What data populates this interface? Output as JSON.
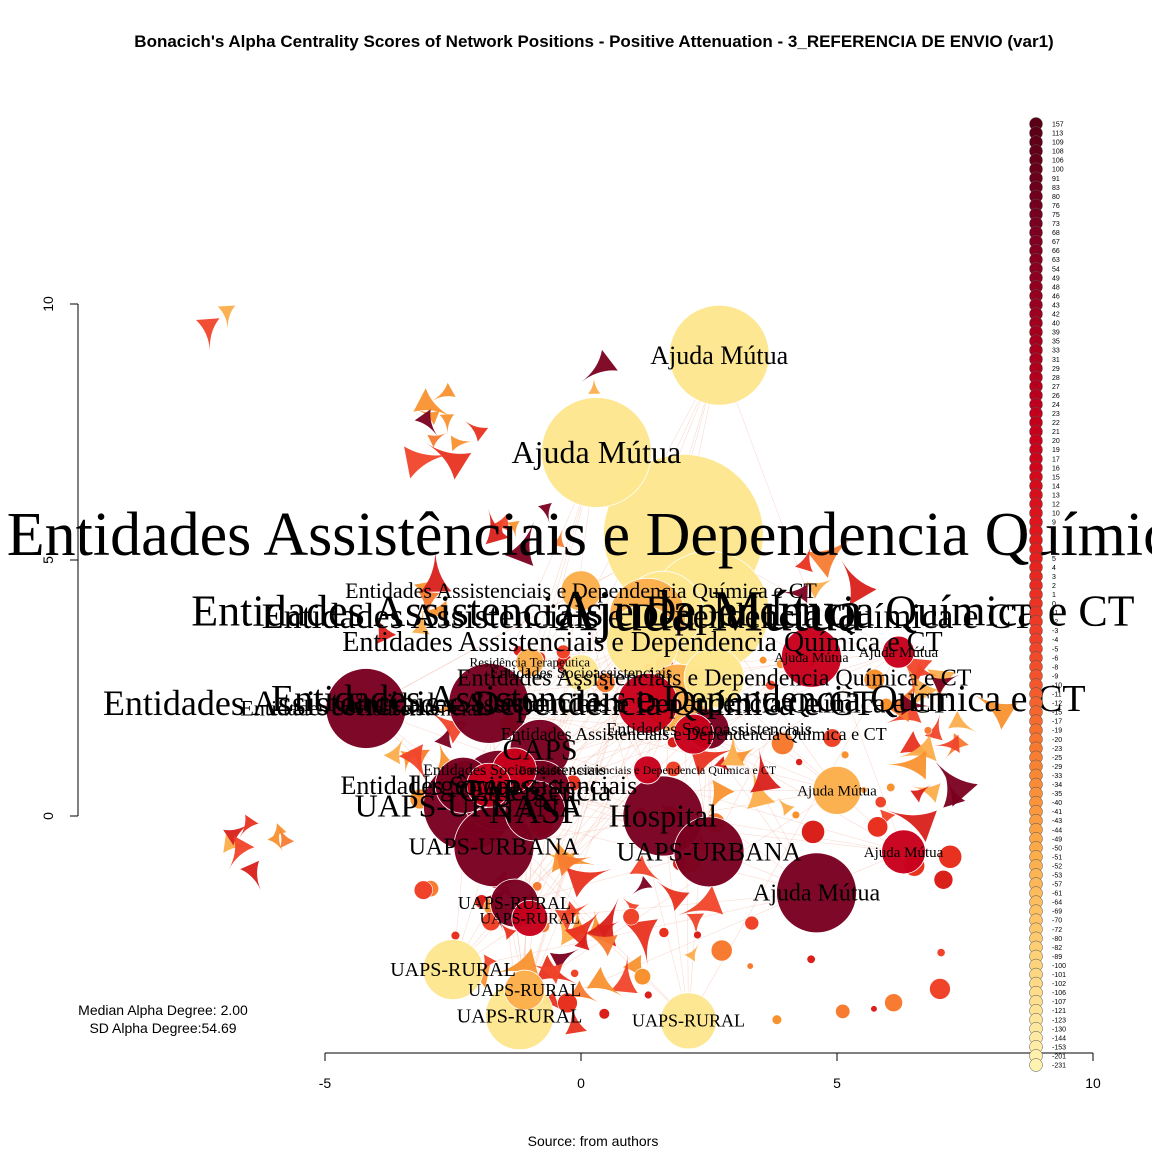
{
  "title": "Bonacich's Alpha Centrality Scores of Network Positions - Positive Attenuation - 3_REFERENCIA DE ENVIO (var1)",
  "source": "Source: from authors",
  "stats": {
    "median": "Median Alpha Degree: 2.00",
    "sd": "SD Alpha Degree:54.69"
  },
  "x_axis": {
    "ticks": [
      "-5",
      "0",
      "5",
      "10"
    ]
  },
  "y_axis": {
    "ticks": [
      "0",
      "5",
      "10"
    ]
  },
  "legend": {
    "values": [
      "157",
      "113",
      "109",
      "108",
      "106",
      "100",
      "91",
      "83",
      "80",
      "76",
      "75",
      "73",
      "68",
      "67",
      "66",
      "63",
      "54",
      "49",
      "48",
      "46",
      "43",
      "42",
      "40",
      "39",
      "35",
      "33",
      "31",
      "29",
      "28",
      "27",
      "26",
      "24",
      "23",
      "22",
      "21",
      "20",
      "19",
      "17",
      "16",
      "15",
      "14",
      "13",
      "12",
      "10",
      "9",
      "8",
      "7",
      "6",
      "5",
      "4",
      "3",
      "2",
      "1",
      "0",
      "-1",
      "-2",
      "-3",
      "-4",
      "-5",
      "-6",
      "-8",
      "-9",
      "-10",
      "-11",
      "-12",
      "-15",
      "-17",
      "-19",
      "-20",
      "-23",
      "-25",
      "-29",
      "-33",
      "-34",
      "-35",
      "-40",
      "-41",
      "-43",
      "-44",
      "-49",
      "-50",
      "-51",
      "-52",
      "-53",
      "-57",
      "-61",
      "-64",
      "-69",
      "-70",
      "-72",
      "-80",
      "-82",
      "-89",
      "-100",
      "-101",
      "-102",
      "-106",
      "-107",
      "-121",
      "-123",
      "-130",
      "-144",
      "-153",
      "-201",
      "-231"
    ]
  },
  "colors": {
    "dark": "#7a0020",
    "red": "#c8001c",
    "orange_red": "#f0442a",
    "orange": "#f77b30",
    "light_orange": "#fcae4b",
    "pale": "#fde68e"
  },
  "chart_data": {
    "type": "network",
    "xlim": [
      -5,
      10
    ],
    "ylim": [
      0,
      10
    ],
    "nodes": [
      {
        "label": "Ajuda Mútua",
        "x": 2.7,
        "y": 9.0,
        "size": 50,
        "color": "#fde68e",
        "font": 26
      },
      {
        "label": "Ajuda Mútua",
        "x": 0.3,
        "y": 7.1,
        "size": 55,
        "color": "#fde68e",
        "font": 32
      },
      {
        "label": "Entidades Assistênciais e Dependencia Químicas e CT",
        "x": 2.0,
        "y": 5.5,
        "size": 80,
        "color": "#fde68e",
        "font": 62
      },
      {
        "label": "Ajuda Mútua",
        "x": 2.5,
        "y": 4.0,
        "size": 60,
        "color": "#fde68e",
        "font": 58
      },
      {
        "label": "Entidades Assistenciais e Dependencia Química e CT",
        "x": 1.6,
        "y": 4.0,
        "size": 40,
        "color": "#fde68e",
        "font": 44
      },
      {
        "label": "Entidades Assistenciais e Dependencia Química e CT",
        "x": 1.3,
        "y": 3.9,
        "size": 38,
        "color": "#fcae4b",
        "font": 36
      },
      {
        "label": "Entidades Assistenciais e Dependencia Química e CT",
        "x": 1.2,
        "y": 3.4,
        "size": 36,
        "color": "#fde68e",
        "font": 28
      },
      {
        "label": "Entidades Assistenciais e Dependencia Química e CT",
        "x": 0.0,
        "y": 4.4,
        "size": 20,
        "color": "#fcae4b",
        "font": 22
      },
      {
        "label": "Entidades Assistenciais e Dependencia Química e CT",
        "x": 2.6,
        "y": 2.7,
        "size": 30,
        "color": "#fde68e",
        "font": 24
      },
      {
        "label": "Entidades Assistenciais e Dependencia Química e CT",
        "x": 1.9,
        "y": 2.3,
        "size": 34,
        "color": "#fcae4b",
        "font": 38
      },
      {
        "label": "Entidades Assistenciais e Dependencia Química e CT",
        "x": 1.3,
        "y": 2.2,
        "size": 30,
        "color": "#c8001c",
        "font": 28
      },
      {
        "label": "Entidades Assistenciais e Dependencia Química e CT",
        "x": -1.8,
        "y": 2.2,
        "size": 40,
        "color": "#7a0020",
        "font": 36
      },
      {
        "label": "Entidades Socioassistenciais",
        "x": -4.2,
        "y": 2.1,
        "size": 40,
        "color": "#7a0020",
        "font": 22
      },
      {
        "label": "Entidades Socioassistenciais",
        "x": 0.0,
        "y": 2.8,
        "size": 18,
        "color": "#fde68e",
        "font": 16
      },
      {
        "label": "Entidades Socioassistenciais",
        "x": -1.3,
        "y": 0.9,
        "size": 22,
        "color": "#c8001c",
        "font": 16
      },
      {
        "label": "Entidades Socioassistenciais",
        "x": -1.8,
        "y": 0.6,
        "size": 22,
        "color": "#c8001c",
        "font": 26
      },
      {
        "label": "Residência Terapeutica",
        "x": -1.0,
        "y": 3.0,
        "size": 14,
        "color": "#fcae4b",
        "font": 13
      },
      {
        "label": "Entidades Socioassistenciais",
        "x": 2.5,
        "y": 1.7,
        "size": 20,
        "color": "#7a0020",
        "font": 18
      },
      {
        "label": "Entidades Assistenciais e Dependencia Química e CT",
        "x": 2.2,
        "y": 1.6,
        "size": 20,
        "color": "#c8001c",
        "font": 18
      },
      {
        "label": "Entidades Assistenciais e Dependencia Química e CT",
        "x": 1.3,
        "y": 0.9,
        "size": 14,
        "color": "#c8001c",
        "font": 12
      },
      {
        "label": "CAPS",
        "x": -0.8,
        "y": 1.3,
        "size": 30,
        "color": "#7a0020",
        "font": 30
      },
      {
        "label": "CAPS",
        "x": -1.6,
        "y": 0.5,
        "size": 40,
        "color": "#7a0020",
        "font": 32
      },
      {
        "label": "Urgência",
        "x": -2.3,
        "y": 0.6,
        "size": 28,
        "color": "#7a0020",
        "font": 30
      },
      {
        "label": "Emergência",
        "x": -0.8,
        "y": 0.5,
        "size": 30,
        "color": "#7a0020",
        "font": 30
      },
      {
        "label": "UAPS-URBANA",
        "x": -2.2,
        "y": 0.2,
        "size": 45,
        "color": "#7a0020",
        "font": 32
      },
      {
        "label": "NASF",
        "x": -0.9,
        "y": 0.1,
        "size": 30,
        "color": "#7a0020",
        "font": 36
      },
      {
        "label": "UAPS-URBANA",
        "x": -1.7,
        "y": -0.6,
        "size": 40,
        "color": "#7a0020",
        "font": 24
      },
      {
        "label": "Hospital",
        "x": 1.6,
        "y": 0.0,
        "size": 40,
        "color": "#7a0020",
        "font": 32
      },
      {
        "label": "UAPS-URBANA",
        "x": 2.5,
        "y": -0.7,
        "size": 35,
        "color": "#7a0020",
        "font": 26
      },
      {
        "label": "Ajuda Mútua",
        "x": 4.6,
        "y": -1.5,
        "size": 40,
        "color": "#7a0020",
        "font": 24
      },
      {
        "label": "Ajuda Mútua",
        "x": 6.3,
        "y": -0.7,
        "size": 22,
        "color": "#c8001c",
        "font": 15
      },
      {
        "label": "Ajuda Mútua",
        "x": 5.0,
        "y": 0.5,
        "size": 24,
        "color": "#fcae4b",
        "font": 15
      },
      {
        "label": "Ajuda Mútua",
        "x": 6.2,
        "y": 3.2,
        "size": 16,
        "color": "#c8001c",
        "font": 15
      },
      {
        "label": "Ajuda Mútua",
        "x": 4.5,
        "y": 3.1,
        "size": 30,
        "color": "#c8001c",
        "font": 14
      },
      {
        "label": "UAPS-RURAL",
        "x": -2.5,
        "y": -3.0,
        "size": 30,
        "color": "#fde68e",
        "font": 20
      },
      {
        "label": "UAPS-RURAL",
        "x": -1.2,
        "y": -3.9,
        "size": 34,
        "color": "#fde68e",
        "font": 20
      },
      {
        "label": "UAPS-RURAL",
        "x": -1.1,
        "y": -3.4,
        "size": 20,
        "color": "#fcae4b",
        "font": 18
      },
      {
        "label": "UAPS-RURAL",
        "x": 2.1,
        "y": -4.0,
        "size": 28,
        "color": "#fde68e",
        "font": 18
      },
      {
        "label": "UAPS-RURAL",
        "x": -1.3,
        "y": -1.7,
        "size": 24,
        "color": "#7a0020",
        "font": 18
      },
      {
        "label": "UAPS-RURAL",
        "x": -1.0,
        "y": -2.0,
        "size": 18,
        "color": "#c8001c",
        "font": 16
      }
    ]
  }
}
